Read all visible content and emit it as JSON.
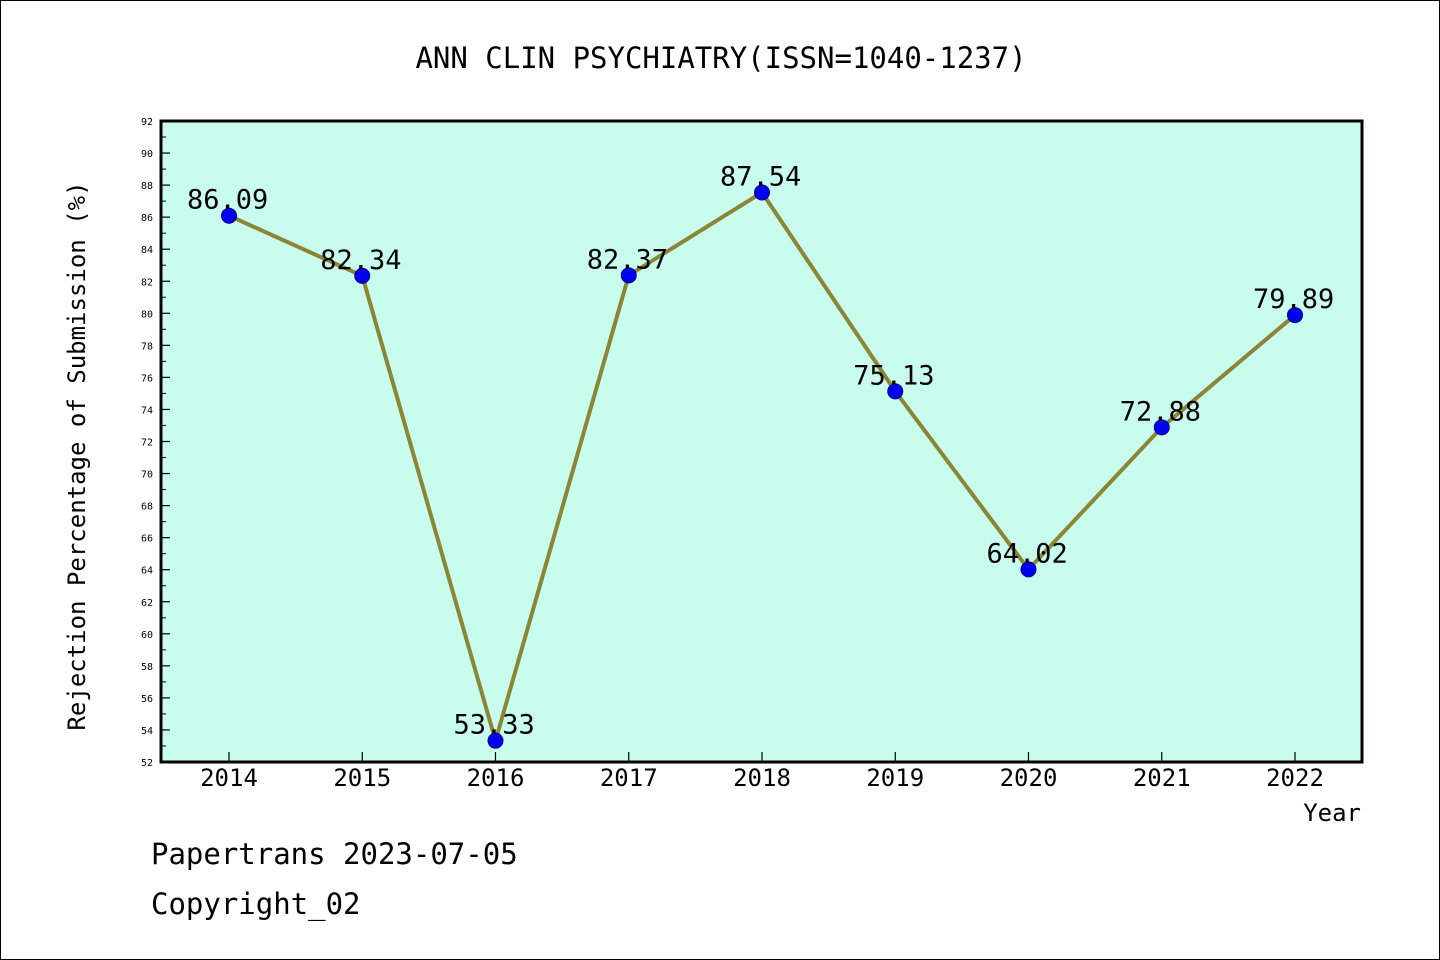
{
  "chart_data": {
    "type": "line",
    "title": "ANN CLIN PSYCHIATRY(ISSN=1040-1237)",
    "xlabel": "Year",
    "ylabel": "Rejection Percentage of Submission (%)",
    "categories": [
      "2014",
      "2015",
      "2016",
      "2017",
      "2018",
      "2019",
      "2020",
      "2021",
      "2022"
    ],
    "series": [
      {
        "values": [
          86.09,
          82.34,
          53.33,
          82.37,
          87.54,
          75.13,
          64.02,
          72.88,
          79.89
        ],
        "labels": [
          "86.09",
          "82.34",
          "53.33",
          "82.37",
          "87.54",
          "75.13",
          "64.02",
          "72.88",
          "79.89"
        ]
      }
    ],
    "ylim": [
      52,
      92
    ],
    "yticks": [
      "52",
      "54",
      "56",
      "58",
      "60",
      "62",
      "64",
      "66",
      "68",
      "70",
      "72",
      "74",
      "76",
      "78",
      "80",
      "82",
      "84",
      "86",
      "88",
      "90",
      "92"
    ],
    "grid": false,
    "legend": "none",
    "colors": {
      "plot_background": "#c8fdee",
      "line": "#8b8535",
      "marker": "#0000ee",
      "marker_edge": "#00008b",
      "axis": "#000000"
    }
  },
  "footer": {
    "date_line": "Papertrans 2023-07-05",
    "copyright_line": "Copyright_02"
  }
}
